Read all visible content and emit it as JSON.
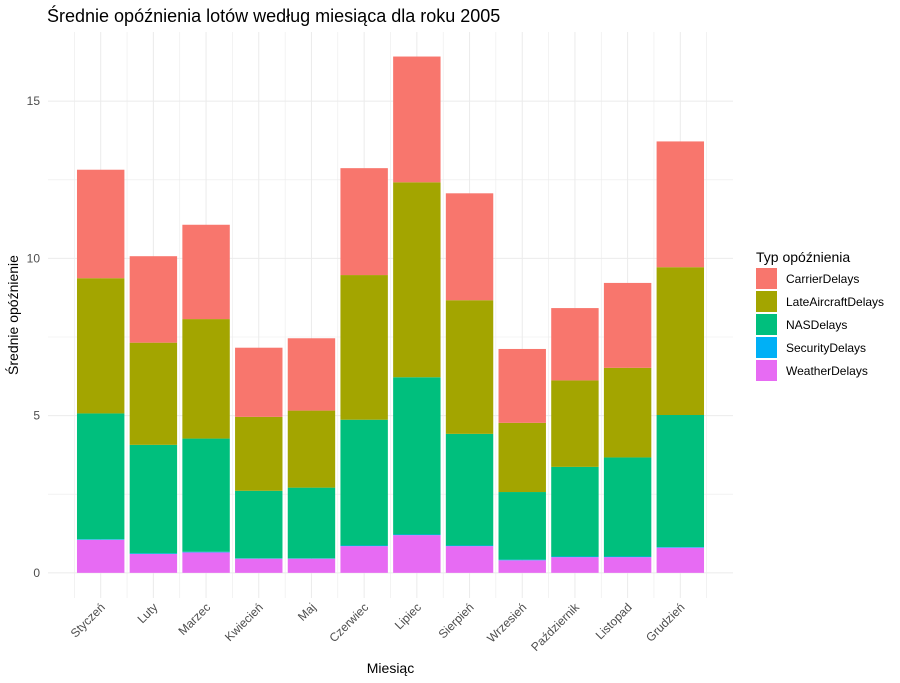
{
  "chart_data": {
    "type": "bar",
    "stacked": true,
    "title": "Średnie opóźnienia lotów według miesiąca dla roku 2005",
    "xlabel": "Miesiąc",
    "ylabel": "Średnie opóźnienie",
    "ylim": [
      -0.8,
      17.2
    ],
    "yticks": [
      0,
      5,
      10,
      15
    ],
    "grid": true,
    "categories": [
      "Styczeń",
      "Luty",
      "Marzec",
      "Kwiecień",
      "Maj",
      "Czerwiec",
      "Lipiec",
      "Sierpień",
      "Wrzesień",
      "Październik",
      "Listopad",
      "Grudzień"
    ],
    "series": [
      {
        "name": "WeatherDelays",
        "color": "#E76BF3",
        "values": [
          1.05,
          0.6,
          0.65,
          0.45,
          0.45,
          0.85,
          1.2,
          0.85,
          0.4,
          0.5,
          0.5,
          0.8
        ]
      },
      {
        "name": "SecurityDelays",
        "color": "#00B0F6",
        "values": [
          0.02,
          0.02,
          0.02,
          0.01,
          0.01,
          0.02,
          0.02,
          0.02,
          0.02,
          0.02,
          0.02,
          0.02
        ]
      },
      {
        "name": "NASDelays",
        "color": "#00BF7D",
        "values": [
          4.0,
          3.45,
          3.6,
          2.15,
          2.25,
          4.0,
          5.0,
          3.55,
          2.15,
          2.85,
          3.15,
          4.2
        ]
      },
      {
        "name": "LateAircraftDelays",
        "color": "#A3A500",
        "values": [
          4.3,
          3.25,
          3.8,
          2.35,
          2.45,
          4.6,
          6.2,
          4.25,
          2.2,
          2.75,
          2.85,
          4.7
        ]
      },
      {
        "name": "CarrierDelays",
        "color": "#F8766D",
        "values": [
          3.45,
          2.75,
          3.0,
          2.2,
          2.3,
          3.4,
          4.0,
          3.4,
          2.35,
          2.3,
          2.7,
          4.0
        ]
      }
    ],
    "legend": {
      "title": "Typ opóźnienia",
      "position": "right",
      "items": [
        {
          "label": "CarrierDelays",
          "color": "#F8766D"
        },
        {
          "label": "LateAircraftDelays",
          "color": "#A3A500"
        },
        {
          "label": "NASDelays",
          "color": "#00BF7D"
        },
        {
          "label": "SecurityDelays",
          "color": "#00B0F6"
        },
        {
          "label": "WeatherDelays",
          "color": "#E76BF3"
        }
      ]
    }
  }
}
